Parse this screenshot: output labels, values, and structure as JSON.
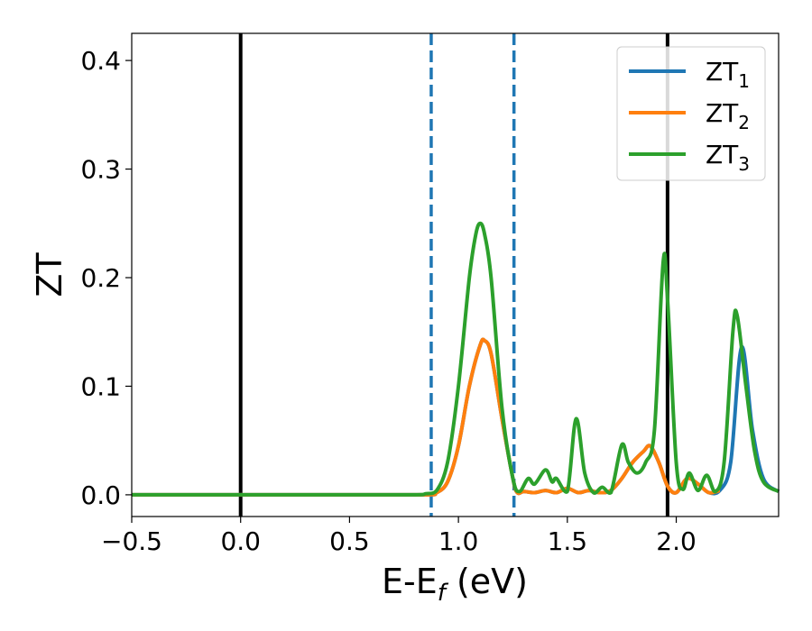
{
  "chart_data": {
    "type": "line",
    "title": "",
    "xlabel": {
      "main": "E-E",
      "sub": "f",
      "tail": " (eV)"
    },
    "ylabel": "ZT",
    "xlim": [
      -0.5,
      2.47
    ],
    "ylim": [
      -0.02,
      0.425
    ],
    "xticks": [
      {
        "value": -0.5,
        "label": "−0.5"
      },
      {
        "value": 0.0,
        "label": "0.0"
      },
      {
        "value": 0.5,
        "label": "0.5"
      },
      {
        "value": 1.0,
        "label": "1.0"
      },
      {
        "value": 1.5,
        "label": "1.5"
      },
      {
        "value": 2.0,
        "label": "2.0"
      }
    ],
    "yticks": [
      {
        "value": 0.0,
        "label": "0.0"
      },
      {
        "value": 0.1,
        "label": "0.1"
      },
      {
        "value": 0.2,
        "label": "0.2"
      },
      {
        "value": 0.3,
        "label": "0.3"
      },
      {
        "value": 0.4,
        "label": "0.4"
      }
    ],
    "grid": false,
    "legend_position": "top-right",
    "vlines": [
      {
        "x": 0.0,
        "style": "solid",
        "color": "#000000"
      },
      {
        "x": 0.875,
        "style": "dashed",
        "color": "#1f77b4"
      },
      {
        "x": 1.255,
        "style": "dashed",
        "color": "#1f77b4"
      },
      {
        "x": 1.96,
        "style": "solid",
        "color": "#000000"
      }
    ],
    "series": [
      {
        "name": "ZT",
        "name_sub": "1",
        "color": "#1f77b4",
        "x": [
          -0.5,
          0.0,
          0.5,
          0.85,
          0.9,
          0.95,
          1.0,
          1.05,
          1.1,
          1.12,
          1.15,
          1.2,
          1.25,
          1.27,
          1.3,
          1.35,
          1.4,
          1.45,
          1.5,
          1.55,
          1.6,
          1.65,
          1.7,
          1.75,
          1.8,
          1.85,
          1.88,
          1.92,
          1.96,
          2.0,
          2.05,
          2.1,
          2.15,
          2.2,
          2.25,
          2.3,
          2.35,
          2.4,
          2.47
        ],
        "y": [
          0,
          0,
          0,
          0,
          0.002,
          0.012,
          0.045,
          0.1,
          0.138,
          0.142,
          0.13,
          0.07,
          0.015,
          0.002,
          0.003,
          0.002,
          0.004,
          0.002,
          0.006,
          0.002,
          0.004,
          0.002,
          0.004,
          0.015,
          0.03,
          0.04,
          0.045,
          0.03,
          0.008,
          0.002,
          0.015,
          0.01,
          0.002,
          0.004,
          0.03,
          0.136,
          0.06,
          0.015,
          0.003
        ]
      },
      {
        "name": "ZT",
        "name_sub": "2",
        "color": "#ff7f0e",
        "x": [
          -0.5,
          0.0,
          0.5,
          0.85,
          0.9,
          0.95,
          1.0,
          1.05,
          1.1,
          1.12,
          1.15,
          1.2,
          1.25,
          1.27,
          1.3,
          1.35,
          1.4,
          1.45,
          1.5,
          1.55,
          1.6,
          1.65,
          1.7,
          1.75,
          1.8,
          1.85,
          1.88,
          1.92,
          1.96,
          2.0,
          2.05,
          2.1,
          2.15,
          2.2
        ],
        "y": [
          0,
          0,
          0,
          0,
          0.002,
          0.012,
          0.045,
          0.1,
          0.138,
          0.142,
          0.13,
          0.07,
          0.015,
          0.002,
          0.003,
          0.002,
          0.004,
          0.002,
          0.006,
          0.002,
          0.004,
          0.002,
          0.004,
          0.015,
          0.03,
          0.04,
          0.045,
          0.03,
          0.008,
          0.002,
          0.015,
          0.01,
          0.002,
          0.004
        ]
      },
      {
        "name": "ZT",
        "name_sub": "3",
        "color": "#2ca02c",
        "x": [
          -0.5,
          0.0,
          0.5,
          0.8,
          0.85,
          0.9,
          0.95,
          1.0,
          1.05,
          1.08,
          1.1,
          1.12,
          1.15,
          1.2,
          1.25,
          1.28,
          1.32,
          1.35,
          1.4,
          1.43,
          1.45,
          1.5,
          1.54,
          1.58,
          1.62,
          1.66,
          1.7,
          1.75,
          1.78,
          1.82,
          1.86,
          1.9,
          1.94,
          1.96,
          2.0,
          2.03,
          2.06,
          2.1,
          2.14,
          2.18,
          2.22,
          2.26,
          2.28,
          2.32,
          2.36,
          2.4,
          2.47
        ],
        "y": [
          0,
          0,
          0,
          0,
          0.001,
          0.004,
          0.03,
          0.1,
          0.2,
          0.24,
          0.25,
          0.24,
          0.2,
          0.08,
          0.015,
          0.003,
          0.015,
          0.01,
          0.023,
          0.012,
          0.015,
          0.003,
          0.07,
          0.02,
          0.002,
          0.007,
          0.002,
          0.046,
          0.03,
          0.02,
          0.03,
          0.06,
          0.215,
          0.18,
          0.03,
          0.005,
          0.02,
          0.004,
          0.018,
          0.003,
          0.03,
          0.15,
          0.165,
          0.1,
          0.04,
          0.012,
          0.003
        ]
      }
    ]
  }
}
